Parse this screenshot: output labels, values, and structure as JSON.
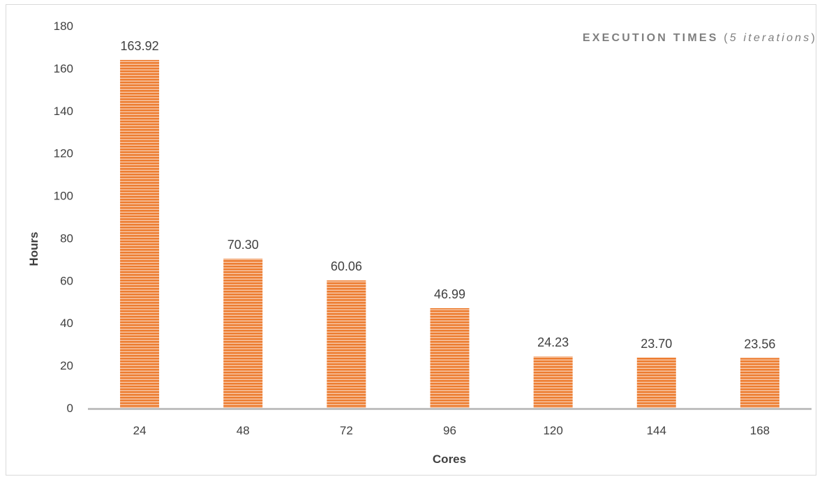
{
  "chart_data": {
    "type": "bar",
    "title": "EXECUTION TIMES",
    "subtitle": "5 iterations",
    "xlabel": "Cores",
    "ylabel": "Hours",
    "categories": [
      "24",
      "48",
      "72",
      "96",
      "120",
      "144",
      "168"
    ],
    "values": [
      163.92,
      70.3,
      60.06,
      46.99,
      24.23,
      23.7,
      23.56
    ],
    "data_labels": [
      "163.92",
      "70.30",
      "60.06",
      "46.99",
      "24.23",
      "23.70",
      "23.56"
    ],
    "ylim": [
      0,
      180
    ],
    "yticks": [
      0,
      20,
      40,
      60,
      80,
      100,
      120,
      140,
      160,
      180
    ],
    "grid": false,
    "legend": "none",
    "bar_color": "#ed7d31",
    "bar_stripe_color": "#f8cbad",
    "axis_color": "#bfbfbf"
  }
}
